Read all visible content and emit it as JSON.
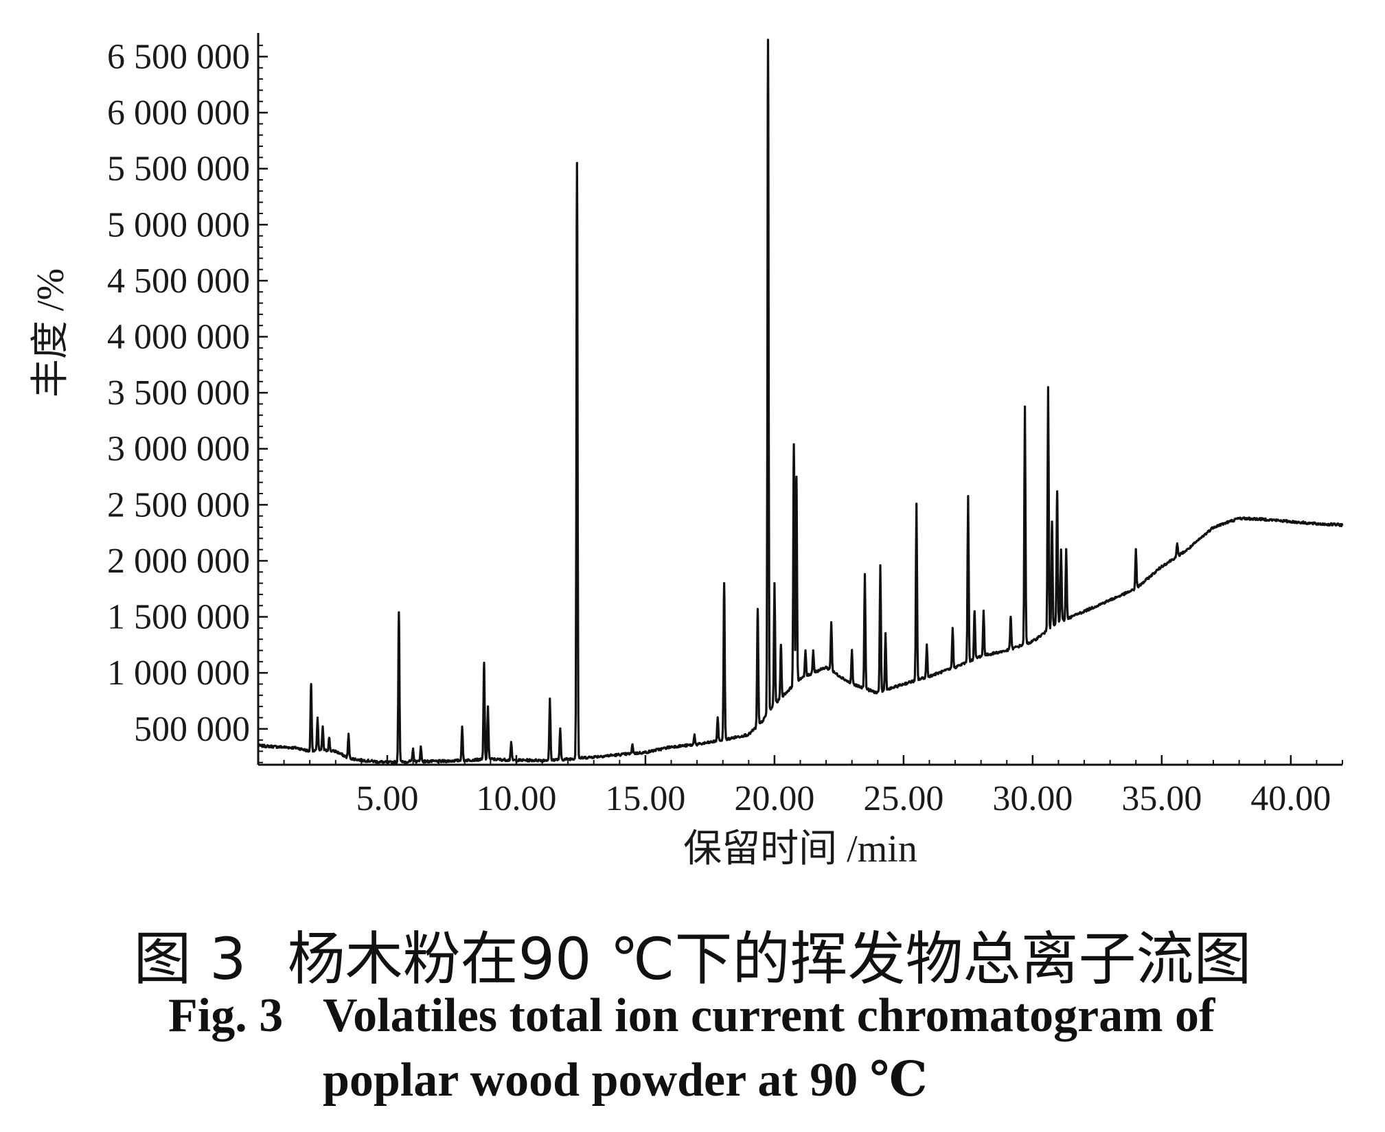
{
  "chart_data": {
    "type": "line",
    "title": "",
    "xlabel": "保留时间 /min",
    "ylabel": "丰度 /%",
    "xlim": [
      0,
      42
    ],
    "ylim": [
      180000,
      6650000
    ],
    "x_ticks": [
      5,
      10,
      15,
      20,
      25,
      30,
      35,
      40
    ],
    "x_tick_labels": [
      "5.00",
      "10.00",
      "15.00",
      "20.00",
      "25.00",
      "30.00",
      "35.00",
      "40.00"
    ],
    "y_ticks": [
      500000,
      1000000,
      1500000,
      2000000,
      2500000,
      3000000,
      3500000,
      4000000,
      4500000,
      5000000,
      5500000,
      6000000,
      6500000
    ],
    "y_tick_labels": [
      "500 000",
      "1 000 000",
      "1 500 000",
      "2 000 000",
      "2 500 000",
      "3 000 000",
      "3 500 000",
      "4 000 000",
      "4 500 000",
      "5 000 000",
      "5 500 000",
      "6 000 000",
      "6 500 000"
    ],
    "grid": false,
    "series": [
      {
        "baseline": [
          [
            0,
            350000
          ],
          [
            1.5,
            330000
          ],
          [
            2.0,
            300000
          ],
          [
            2.5,
            310000
          ],
          [
            3.0,
            300000
          ],
          [
            3.5,
            240000
          ],
          [
            4.0,
            220000
          ],
          [
            5.0,
            200000
          ],
          [
            6.0,
            210000
          ],
          [
            7.0,
            210000
          ],
          [
            8.0,
            220000
          ],
          [
            9.0,
            230000
          ],
          [
            10.0,
            220000
          ],
          [
            11.0,
            220000
          ],
          [
            12.0,
            230000
          ],
          [
            13.0,
            250000
          ],
          [
            14.0,
            270000
          ],
          [
            15.0,
            290000
          ],
          [
            16.0,
            340000
          ],
          [
            17.0,
            360000
          ],
          [
            18.0,
            400000
          ],
          [
            19.0,
            450000
          ],
          [
            19.5,
            560000
          ],
          [
            20.0,
            720000
          ],
          [
            21.0,
            950000
          ],
          [
            22.0,
            1050000
          ],
          [
            23.0,
            900000
          ],
          [
            24.0,
            820000
          ],
          [
            25.0,
            900000
          ],
          [
            26.0,
            970000
          ],
          [
            27.0,
            1050000
          ],
          [
            28.0,
            1150000
          ],
          [
            29.0,
            1200000
          ],
          [
            30.0,
            1280000
          ],
          [
            31.0,
            1450000
          ],
          [
            32.0,
            1550000
          ],
          [
            33.0,
            1650000
          ],
          [
            34.0,
            1750000
          ],
          [
            35.0,
            1950000
          ],
          [
            36.0,
            2100000
          ],
          [
            37.0,
            2300000
          ],
          [
            38.0,
            2380000
          ],
          [
            39.0,
            2370000
          ],
          [
            40.0,
            2350000
          ],
          [
            41.0,
            2330000
          ],
          [
            42.0,
            2320000
          ]
        ],
        "peaks": [
          [
            2.05,
            900000
          ],
          [
            2.3,
            600000
          ],
          [
            2.5,
            520000
          ],
          [
            2.75,
            420000
          ],
          [
            3.5,
            450000
          ],
          [
            5.45,
            1540000
          ],
          [
            6.0,
            320000
          ],
          [
            6.3,
            340000
          ],
          [
            7.9,
            520000
          ],
          [
            8.75,
            1090000
          ],
          [
            8.9,
            700000
          ],
          [
            9.8,
            380000
          ],
          [
            11.3,
            770000
          ],
          [
            11.7,
            500000
          ],
          [
            12.35,
            5550000
          ],
          [
            14.5,
            360000
          ],
          [
            16.9,
            450000
          ],
          [
            17.8,
            600000
          ],
          [
            18.05,
            1800000
          ],
          [
            19.35,
            1570000
          ],
          [
            19.75,
            6650000
          ],
          [
            20.0,
            1800000
          ],
          [
            20.25,
            1250000
          ],
          [
            20.75,
            3040000
          ],
          [
            20.85,
            2750000
          ],
          [
            21.2,
            1200000
          ],
          [
            21.5,
            1200000
          ],
          [
            22.2,
            1450000
          ],
          [
            23.0,
            1200000
          ],
          [
            23.5,
            1880000
          ],
          [
            24.1,
            1960000
          ],
          [
            24.3,
            1350000
          ],
          [
            25.5,
            2500000
          ],
          [
            25.9,
            1250000
          ],
          [
            26.9,
            1400000
          ],
          [
            27.5,
            2570000
          ],
          [
            27.75,
            1550000
          ],
          [
            28.1,
            1550000
          ],
          [
            29.15,
            1500000
          ],
          [
            29.7,
            3370000
          ],
          [
            30.6,
            3550000
          ],
          [
            30.75,
            2350000
          ],
          [
            30.95,
            2620000
          ],
          [
            31.1,
            2100000
          ],
          [
            31.3,
            2100000
          ],
          [
            34.0,
            2100000
          ],
          [
            35.6,
            2150000
          ]
        ]
      }
    ]
  },
  "captions": {
    "zh_fig": "图 3",
    "zh_text": "杨木粉在90 ℃下的挥发物总离子流图",
    "en_fig": "Fig. 3",
    "en_line1": "Volatiles total ion current chromatogram of",
    "en_line2": "poplar wood powder at 90 ℃"
  },
  "colors": {
    "line": "#111111",
    "axis": "#111111",
    "text": "#1a1a1a"
  }
}
